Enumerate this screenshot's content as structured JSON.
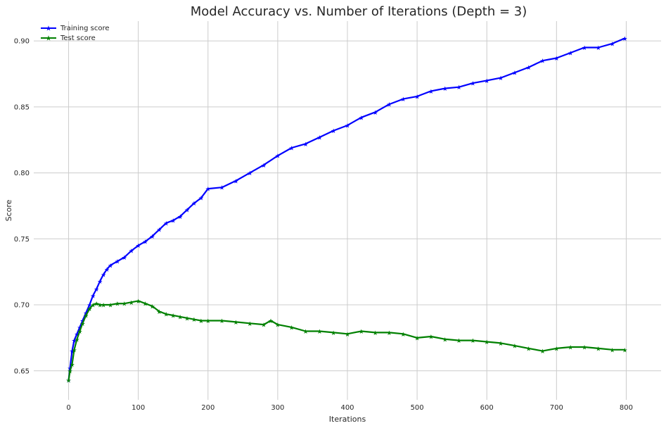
{
  "chart_data": {
    "type": "line",
    "title": "Model Accuracy vs. Number of Iterations (Depth = 3)",
    "xlabel": "Iterations",
    "ylabel": "Score",
    "xlim": [
      -50,
      850
    ],
    "ylim": [
      0.628,
      0.915
    ],
    "xticks": [
      0,
      100,
      200,
      300,
      400,
      500,
      600,
      700,
      800
    ],
    "xtick_labels": [
      "0",
      "100",
      "200",
      "300",
      "400",
      "500",
      "600",
      "700",
      "800"
    ],
    "yticks": [
      0.65,
      0.7,
      0.75,
      0.8,
      0.85,
      0.9
    ],
    "ytick_labels": [
      "0.65",
      "0.70",
      "0.75",
      "0.80",
      "0.85",
      "0.90"
    ],
    "grid": true,
    "legend_position": "top-left",
    "series": [
      {
        "name": "Training score",
        "color": "#0000ff",
        "marker": "star",
        "x": [
          0,
          2,
          5,
          8,
          12,
          16,
          20,
          25,
          30,
          35,
          40,
          45,
          50,
          55,
          60,
          70,
          80,
          90,
          100,
          110,
          120,
          130,
          140,
          150,
          160,
          170,
          180,
          190,
          200,
          220,
          240,
          260,
          280,
          300,
          320,
          340,
          360,
          380,
          400,
          420,
          440,
          460,
          480,
          500,
          520,
          540,
          560,
          580,
          600,
          620,
          640,
          660,
          680,
          700,
          720,
          740,
          760,
          780,
          798
        ],
        "y": [
          0.643,
          0.652,
          0.665,
          0.673,
          0.678,
          0.683,
          0.688,
          0.694,
          0.7,
          0.707,
          0.712,
          0.718,
          0.723,
          0.727,
          0.73,
          0.733,
          0.736,
          0.741,
          0.745,
          0.748,
          0.752,
          0.757,
          0.762,
          0.764,
          0.767,
          0.772,
          0.777,
          0.781,
          0.788,
          0.789,
          0.794,
          0.8,
          0.806,
          0.813,
          0.819,
          0.822,
          0.827,
          0.832,
          0.836,
          0.842,
          0.846,
          0.852,
          0.856,
          0.858,
          0.862,
          0.864,
          0.865,
          0.868,
          0.87,
          0.872,
          0.876,
          0.88,
          0.885,
          0.887,
          0.891,
          0.895,
          0.895,
          0.898,
          0.902
        ]
      },
      {
        "name": "Test score",
        "color": "#008000",
        "marker": "star",
        "x": [
          0,
          2,
          5,
          8,
          12,
          16,
          20,
          25,
          30,
          35,
          40,
          45,
          50,
          60,
          70,
          80,
          90,
          100,
          110,
          120,
          130,
          140,
          150,
          160,
          170,
          180,
          190,
          200,
          220,
          240,
          260,
          280,
          290,
          300,
          320,
          340,
          360,
          380,
          400,
          420,
          440,
          460,
          480,
          500,
          520,
          540,
          560,
          580,
          600,
          620,
          640,
          660,
          680,
          700,
          720,
          740,
          760,
          780,
          798
        ],
        "y": [
          0.643,
          0.65,
          0.655,
          0.666,
          0.674,
          0.68,
          0.686,
          0.692,
          0.697,
          0.7,
          0.701,
          0.7,
          0.7,
          0.7,
          0.701,
          0.701,
          0.702,
          0.703,
          0.701,
          0.699,
          0.695,
          0.693,
          0.692,
          0.691,
          0.69,
          0.689,
          0.688,
          0.688,
          0.688,
          0.687,
          0.686,
          0.685,
          0.688,
          0.685,
          0.683,
          0.68,
          0.68,
          0.679,
          0.678,
          0.68,
          0.679,
          0.679,
          0.678,
          0.675,
          0.676,
          0.674,
          0.673,
          0.673,
          0.672,
          0.671,
          0.669,
          0.667,
          0.665,
          0.667,
          0.668,
          0.668,
          0.667,
          0.666,
          0.666
        ]
      }
    ]
  }
}
